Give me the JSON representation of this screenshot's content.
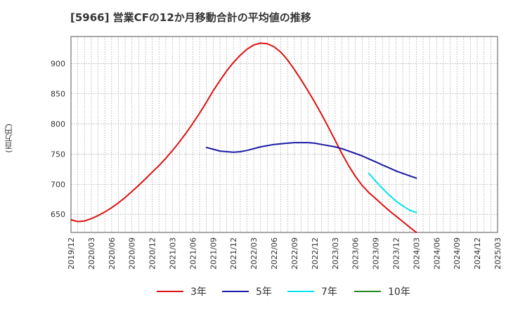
{
  "title": "[5966]  営業CFの12か月移動合計の平均値の推移",
  "y_unit": "(百万円)",
  "chart_data": {
    "type": "line",
    "ylim": [
      620,
      945
    ],
    "yticks": [
      650,
      700,
      750,
      800,
      850,
      900
    ],
    "x_start": "2019/12",
    "x_end": "2025/03",
    "xticks": [
      "2019/12",
      "2020/03",
      "2020/06",
      "2020/09",
      "2020/12",
      "2021/03",
      "2021/06",
      "2021/09",
      "2021/12",
      "2022/03",
      "2022/06",
      "2022/09",
      "2022/12",
      "2023/03",
      "2023/06",
      "2023/09",
      "2023/12",
      "2024/03",
      "2024/06",
      "2024/09",
      "2024/12",
      "2025/03"
    ],
    "grid": true,
    "legend_position": "bottom",
    "series": [
      {
        "name": "3年",
        "color": "#dd1111",
        "points": [
          [
            "2019/12",
            641
          ],
          [
            "2020/01",
            638
          ],
          [
            "2020/02",
            639
          ],
          [
            "2020/03",
            643
          ],
          [
            "2020/04",
            648
          ],
          [
            "2020/05",
            654
          ],
          [
            "2020/06",
            661
          ],
          [
            "2020/07",
            669
          ],
          [
            "2020/08",
            678
          ],
          [
            "2020/09",
            688
          ],
          [
            "2020/10",
            698
          ],
          [
            "2020/11",
            709
          ],
          [
            "2020/12",
            720
          ],
          [
            "2021/01",
            731
          ],
          [
            "2021/02",
            743
          ],
          [
            "2021/03",
            756
          ],
          [
            "2021/04",
            770
          ],
          [
            "2021/05",
            785
          ],
          [
            "2021/06",
            801
          ],
          [
            "2021/07",
            818
          ],
          [
            "2021/08",
            836
          ],
          [
            "2021/09",
            855
          ],
          [
            "2021/10",
            872
          ],
          [
            "2021/11",
            888
          ],
          [
            "2021/12",
            902
          ],
          [
            "2022/01",
            914
          ],
          [
            "2022/02",
            924
          ],
          [
            "2022/03",
            931
          ],
          [
            "2022/04",
            934
          ],
          [
            "2022/05",
            933
          ],
          [
            "2022/06",
            928
          ],
          [
            "2022/07",
            919
          ],
          [
            "2022/08",
            906
          ],
          [
            "2022/09",
            890
          ],
          [
            "2022/10",
            873
          ],
          [
            "2022/11",
            855
          ],
          [
            "2022/12",
            836
          ],
          [
            "2023/01",
            816
          ],
          [
            "2023/02",
            795
          ],
          [
            "2023/03",
            773
          ],
          [
            "2023/04",
            751
          ],
          [
            "2023/05",
            731
          ],
          [
            "2023/06",
            713
          ],
          [
            "2023/07",
            698
          ],
          [
            "2023/08",
            686
          ],
          [
            "2023/09",
            676
          ],
          [
            "2023/10",
            666
          ],
          [
            "2023/11",
            656
          ],
          [
            "2023/12",
            647
          ],
          [
            "2024/01",
            638
          ],
          [
            "2024/02",
            629
          ],
          [
            "2024/03",
            620
          ]
        ]
      },
      {
        "name": "5年",
        "color": "#1a1aa6",
        "points": [
          [
            "2021/08",
            761
          ],
          [
            "2021/09",
            758
          ],
          [
            "2021/10",
            755
          ],
          [
            "2021/11",
            754
          ],
          [
            "2021/12",
            753
          ],
          [
            "2022/01",
            754
          ],
          [
            "2022/02",
            756
          ],
          [
            "2022/03",
            759
          ],
          [
            "2022/04",
            762
          ],
          [
            "2022/05",
            764
          ],
          [
            "2022/06",
            766
          ],
          [
            "2022/07",
            767
          ],
          [
            "2022/08",
            768
          ],
          [
            "2022/09",
            769
          ],
          [
            "2022/10",
            769
          ],
          [
            "2022/11",
            769
          ],
          [
            "2022/12",
            768
          ],
          [
            "2023/01",
            766
          ],
          [
            "2023/02",
            764
          ],
          [
            "2023/03",
            762
          ],
          [
            "2023/04",
            759
          ],
          [
            "2023/05",
            755
          ],
          [
            "2023/06",
            751
          ],
          [
            "2023/07",
            747
          ],
          [
            "2023/08",
            742
          ],
          [
            "2023/09",
            737
          ],
          [
            "2023/10",
            732
          ],
          [
            "2023/11",
            727
          ],
          [
            "2023/12",
            722
          ],
          [
            "2024/01",
            718
          ],
          [
            "2024/02",
            714
          ],
          [
            "2024/03",
            710
          ]
        ]
      },
      {
        "name": "7年",
        "color": "#00e5ee",
        "points": [
          [
            "2023/08",
            718
          ],
          [
            "2023/09",
            705
          ],
          [
            "2023/10",
            693
          ],
          [
            "2023/11",
            682
          ],
          [
            "2023/12",
            672
          ],
          [
            "2024/01",
            664
          ],
          [
            "2024/02",
            657
          ],
          [
            "2024/03",
            653
          ]
        ]
      },
      {
        "name": "10年",
        "color": "#228b22",
        "points": []
      }
    ]
  }
}
